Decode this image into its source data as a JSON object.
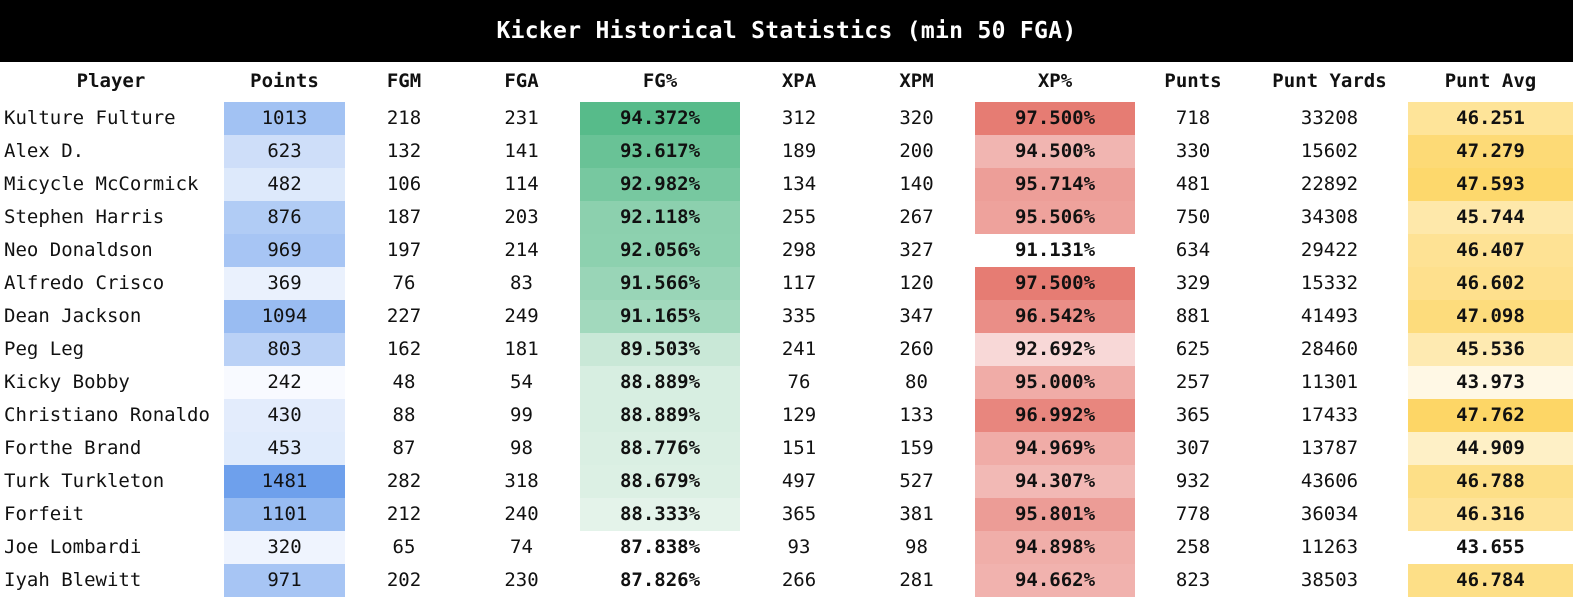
{
  "title": "Kicker Historical Statistics (min 50 FGA)",
  "colors": {
    "title_bg": "#000000",
    "points_scale": "blue",
    "fg_pct_scale": "green",
    "xp_pct_scale": "red",
    "punt_avg_scale": "yellow"
  },
  "chart_data": {
    "type": "table",
    "title": "Kicker Historical Statistics (min 50 FGA)",
    "columns": [
      "Player",
      "Points",
      "FGM",
      "FGA",
      "FG%",
      "XPA",
      "XPM",
      "XP%",
      "Punts",
      "Punt Yards",
      "Punt Avg"
    ],
    "rows": [
      [
        "Kulture Fulture",
        "1013",
        "218",
        "231",
        "94.372%",
        "312",
        "320",
        "97.500%",
        "718",
        "33208",
        "46.251"
      ],
      [
        "Alex D.",
        "623",
        "132",
        "141",
        "93.617%",
        "189",
        "200",
        "94.500%",
        "330",
        "15602",
        "47.279"
      ],
      [
        "Micycle McCormick",
        "482",
        "106",
        "114",
        "92.982%",
        "134",
        "140",
        "95.714%",
        "481",
        "22892",
        "47.593"
      ],
      [
        "Stephen Harris",
        "876",
        "187",
        "203",
        "92.118%",
        "255",
        "267",
        "95.506%",
        "750",
        "34308",
        "45.744"
      ],
      [
        "Neo Donaldson",
        "969",
        "197",
        "214",
        "92.056%",
        "298",
        "327",
        "91.131%",
        "634",
        "29422",
        "46.407"
      ],
      [
        "Alfredo Crisco",
        "369",
        "76",
        "83",
        "91.566%",
        "117",
        "120",
        "97.500%",
        "329",
        "15332",
        "46.602"
      ],
      [
        "Dean Jackson",
        "1094",
        "227",
        "249",
        "91.165%",
        "335",
        "347",
        "96.542%",
        "881",
        "41493",
        "47.098"
      ],
      [
        "Peg Leg",
        "803",
        "162",
        "181",
        "89.503%",
        "241",
        "260",
        "92.692%",
        "625",
        "28460",
        "45.536"
      ],
      [
        "Kicky Bobby",
        "242",
        "48",
        "54",
        "88.889%",
        "76",
        "80",
        "95.000%",
        "257",
        "11301",
        "43.973"
      ],
      [
        "Christiano Ronaldo",
        "430",
        "88",
        "99",
        "88.889%",
        "129",
        "133",
        "96.992%",
        "365",
        "17433",
        "47.762"
      ],
      [
        "Forthe Brand",
        "453",
        "87",
        "98",
        "88.776%",
        "151",
        "159",
        "94.969%",
        "307",
        "13787",
        "44.909"
      ],
      [
        "Turk Turkleton",
        "1481",
        "282",
        "318",
        "88.679%",
        "497",
        "527",
        "94.307%",
        "932",
        "43606",
        "46.788"
      ],
      [
        "Forfeit",
        "1101",
        "212",
        "240",
        "88.333%",
        "365",
        "381",
        "95.801%",
        "778",
        "36034",
        "46.316"
      ],
      [
        "Joe Lombardi",
        "320",
        "65",
        "74",
        "87.838%",
        "93",
        "98",
        "94.898%",
        "258",
        "11263",
        "43.655"
      ],
      [
        "Iyah Blewitt",
        "971",
        "202",
        "230",
        "87.826%",
        "266",
        "281",
        "94.662%",
        "823",
        "38503",
        "46.784"
      ]
    ],
    "heat_columns": [
      "Points",
      "FG%",
      "XP%",
      "Punt Avg"
    ]
  }
}
